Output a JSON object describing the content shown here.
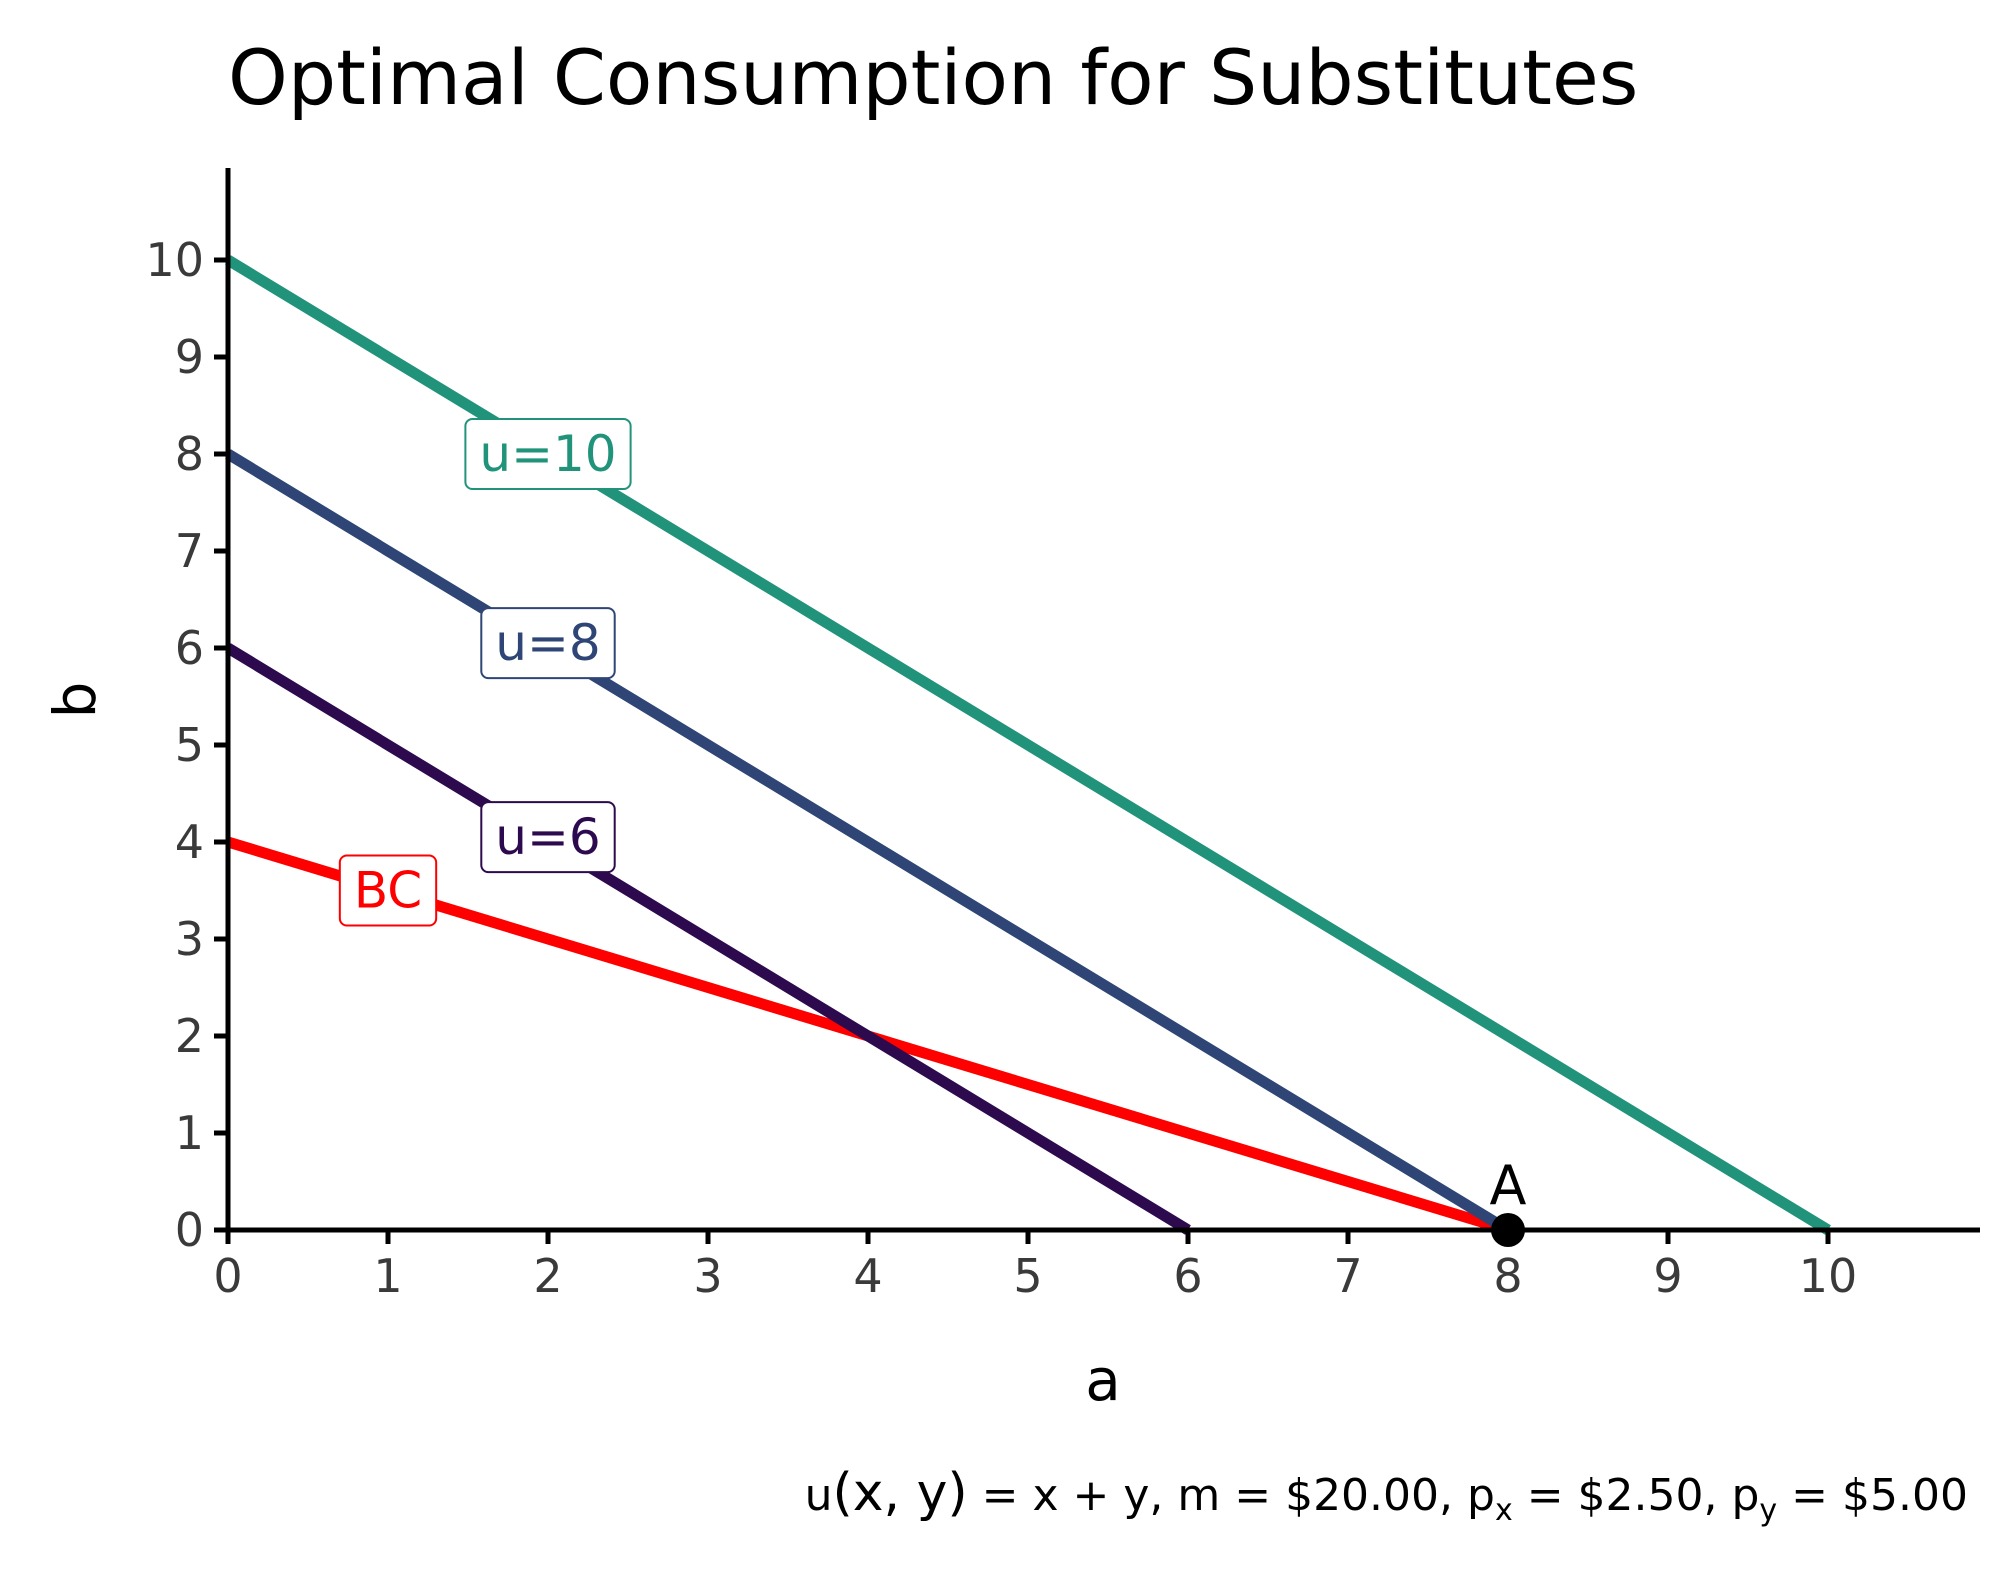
{
  "chart_data": {
    "type": "line",
    "title": "Optimal Consumption for Substitutes",
    "xlabel": "a",
    "ylabel": "b",
    "xlim": [
      0,
      11
    ],
    "ylim": [
      0,
      11
    ],
    "xticks": [
      0,
      1,
      2,
      3,
      4,
      5,
      6,
      7,
      8,
      9,
      10
    ],
    "yticks": [
      0,
      1,
      2,
      3,
      4,
      5,
      6,
      7,
      8,
      9,
      10
    ],
    "grid": false,
    "series": [
      {
        "name": "BC",
        "color": "#ff0000",
        "points": [
          [
            0,
            4
          ],
          [
            8,
            0
          ]
        ],
        "label_at": [
          1,
          3.5
        ]
      },
      {
        "name": "u=6",
        "color": "#2d0a4e",
        "points": [
          [
            0,
            6
          ],
          [
            6,
            0
          ]
        ],
        "label_at": [
          2,
          4.05
        ]
      },
      {
        "name": "u=8",
        "color": "#2e4575",
        "points": [
          [
            0,
            8
          ],
          [
            8,
            0
          ]
        ],
        "label_at": [
          2,
          6.05
        ]
      },
      {
        "name": "u=10",
        "color": "#21937a",
        "points": [
          [
            0,
            10
          ],
          [
            10,
            0
          ]
        ],
        "label_at": [
          2,
          8.0
        ]
      }
    ],
    "points": [
      {
        "label": "A",
        "x": 8,
        "y": 0,
        "color": "#000000"
      }
    ],
    "caption": {
      "u_prefix": "u",
      "u_args": "(x, y)",
      "u_rest": " = x + y, m = $20.00, p",
      "px_sub": "x",
      "mid": " = $2.50, p",
      "py_sub": "y",
      "end": " = $5.00"
    }
  }
}
